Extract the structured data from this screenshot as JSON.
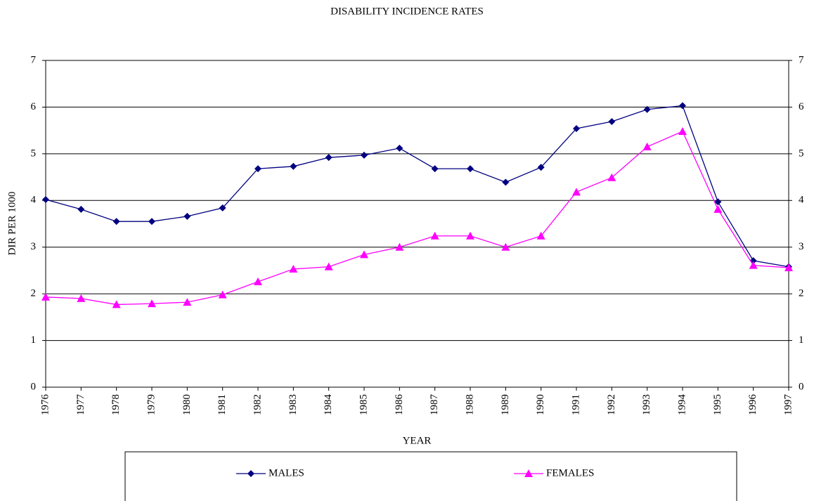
{
  "chart_data": {
    "type": "line",
    "title": "DISABILITY INCIDENCE RATES",
    "x_label": "YEAR",
    "y_label": "DIR PER 1000",
    "x": [
      1976,
      1977,
      1978,
      1979,
      1980,
      1981,
      1982,
      1983,
      1984,
      1985,
      1986,
      1987,
      1988,
      1989,
      1990,
      1991,
      1992,
      1993,
      1994,
      1995,
      1996,
      1997
    ],
    "xlim": [
      1976,
      1997
    ],
    "xticks": [
      1976,
      1977,
      1978,
      1979,
      1980,
      1981,
      1982,
      1983,
      1984,
      1985,
      1986,
      1987,
      1988,
      1989,
      1990,
      1991,
      1992,
      1993,
      1994,
      1995,
      1996,
      1997
    ],
    "ylim": [
      0,
      7
    ],
    "yticks": [
      0,
      1,
      2,
      3,
      4,
      5,
      6,
      7
    ],
    "y2lim": [
      0,
      7
    ],
    "y2ticks": [
      0,
      1,
      2,
      3,
      4,
      5,
      6,
      7
    ],
    "grid": true,
    "legend": "bottom",
    "series": [
      {
        "name": "MALES",
        "color": "#000080",
        "marker": "diamond",
        "values": [
          4.02,
          3.81,
          3.55,
          3.55,
          3.66,
          3.84,
          4.68,
          4.73,
          4.92,
          4.97,
          5.12,
          4.68,
          4.68,
          4.39,
          4.71,
          5.54,
          5.69,
          5.95,
          6.03,
          3.97,
          2.71,
          2.58
        ]
      },
      {
        "name": "FEMALES",
        "color": "#FF00FF",
        "marker": "triangle",
        "values": [
          1.93,
          1.9,
          1.77,
          1.79,
          1.82,
          1.98,
          2.26,
          2.53,
          2.58,
          2.84,
          3.0,
          3.24,
          3.24,
          3.0,
          3.24,
          4.18,
          4.49,
          5.15,
          5.48,
          3.81,
          2.61,
          2.56
        ]
      }
    ]
  }
}
